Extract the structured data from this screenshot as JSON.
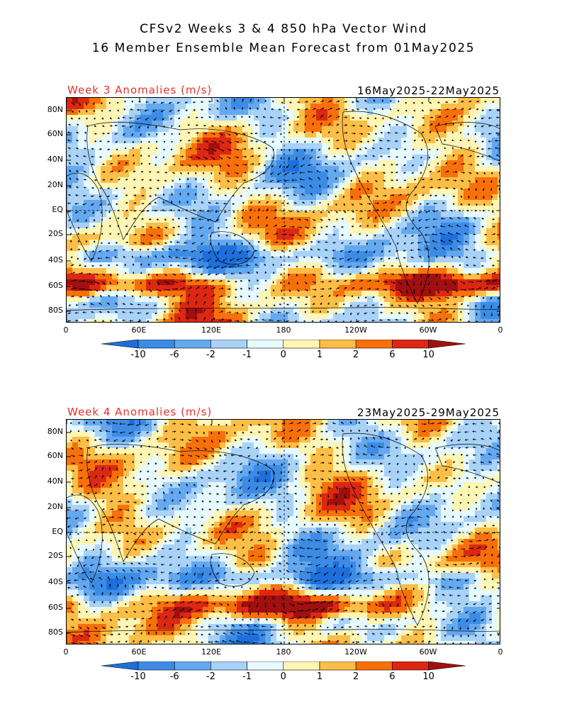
{
  "title": {
    "line1": "CFSv2 Weeks 3 & 4 850 hPa Vector Wind",
    "line2": "16 Member Ensemble Mean Forecast from 01May2025"
  },
  "panels": [
    {
      "id": "week3",
      "label": "Week 3 Anomalies (m/s)",
      "date_range": "16May2025-22May2025"
    },
    {
      "id": "week4",
      "label": "Week 4 Anomalies (m/s)",
      "date_range": "23May2025-29May2025"
    }
  ],
  "lat_ticks": [
    "80N",
    "60N",
    "40N",
    "20N",
    "EQ",
    "20S",
    "40S",
    "60S",
    "80S"
  ],
  "lon_ticks": [
    "0",
    "60E",
    "120E",
    "180",
    "120W",
    "60W",
    "0"
  ],
  "colorbar": {
    "labels": [
      "-10",
      "-6",
      "-2",
      "-1",
      "0",
      "1",
      "2",
      "6",
      "10"
    ],
    "colors": [
      "#1e6fdc",
      "#3c8ce6",
      "#64a8f0",
      "#a8d2f8",
      "#e6faff",
      "#fff5b4",
      "#fcbe46",
      "#f8700a",
      "#dc2812",
      "#a01010"
    ]
  },
  "style": {
    "label_red": "#e8302a",
    "contour_line": "#000000",
    "arrow_color": "#000000"
  }
}
